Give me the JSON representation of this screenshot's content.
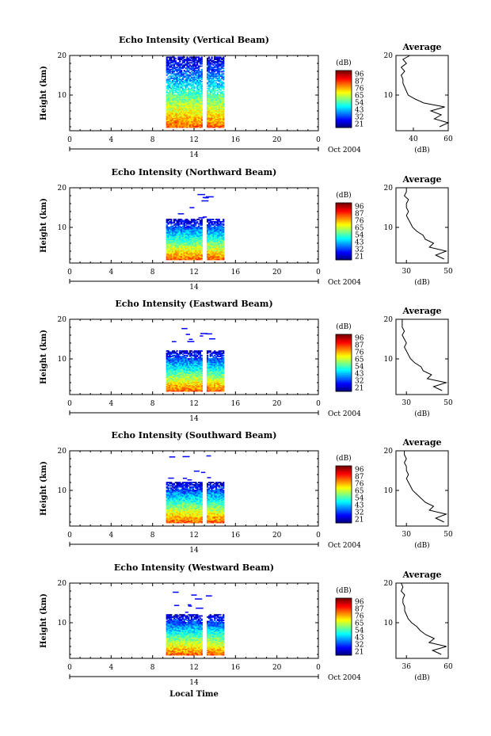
{
  "figure": {
    "xlabel": "Local Time",
    "date_label": "Oct 2004",
    "avg_title": "Average",
    "avg_xlabel": "(dB)",
    "colorbar_label": "(dB)",
    "colorbar_ticks": [
      "96",
      "87",
      "76",
      "65",
      "54",
      "43",
      "32",
      "21"
    ]
  },
  "chart_data": [
    {
      "type": "heatmap",
      "title": "Echo Intensity (Vertical Beam)",
      "ylabel": "Height (km)",
      "xlim": [
        0,
        24
      ],
      "ylim": [
        1,
        20
      ],
      "xticks": [
        "0",
        "4",
        "8",
        "12",
        "16",
        "20",
        "0"
      ],
      "yticks": [
        "10",
        "20"
      ],
      "date_tick": "14",
      "time_start": 9.3,
      "time_end": 14.9,
      "gap": [
        12.8,
        13.1
      ],
      "top_km": 19.5,
      "colorbar": {
        "min": 21,
        "max": 96,
        "ticks": [
          96,
          87,
          76,
          65,
          54,
          43,
          32,
          21
        ]
      },
      "average": {
        "xlim": [
          30,
          60
        ],
        "xticks": [
          "40",
          "60"
        ],
        "height_km": [
          2,
          3,
          4,
          5,
          6,
          7,
          8,
          9,
          10,
          11,
          12,
          13,
          14,
          15,
          16,
          17,
          18,
          19,
          20
        ],
        "db": [
          55,
          60,
          52,
          56,
          50,
          58,
          46,
          41,
          37,
          36,
          35,
          34,
          34,
          33,
          35,
          33,
          36,
          34,
          38
        ]
      }
    },
    {
      "type": "heatmap",
      "title": "Echo Intensity (Northward Beam)",
      "ylabel": "Height (km)",
      "xlim": [
        0,
        24
      ],
      "ylim": [
        1,
        20
      ],
      "xticks": [
        "0",
        "4",
        "8",
        "12",
        "16",
        "20",
        "0"
      ],
      "yticks": [
        "10",
        "20"
      ],
      "date_tick": "14",
      "time_start": 9.3,
      "time_end": 14.9,
      "gap": [
        12.8,
        13.1
      ],
      "top_km": 12,
      "colorbar": {
        "min": 21,
        "max": 96,
        "ticks": [
          96,
          87,
          76,
          65,
          54,
          43,
          32,
          21
        ]
      },
      "average": {
        "xlim": [
          25,
          50
        ],
        "xticks": [
          "30",
          "50"
        ],
        "height_km": [
          2,
          3,
          4,
          5,
          6,
          7,
          8,
          9,
          10,
          11,
          12,
          13,
          14,
          15,
          16,
          17,
          18,
          19,
          20
        ],
        "db": [
          48,
          44,
          49,
          41,
          43,
          39,
          38,
          35,
          33,
          32,
          31,
          30,
          31,
          30,
          30,
          31,
          29,
          30,
          30
        ]
      }
    },
    {
      "type": "heatmap",
      "title": "Echo Intensity (Eastward Beam)",
      "ylabel": "Height (km)",
      "xlim": [
        0,
        24
      ],
      "ylim": [
        1,
        20
      ],
      "xticks": [
        "0",
        "4",
        "8",
        "12",
        "16",
        "20",
        "0"
      ],
      "yticks": [
        "10",
        "20"
      ],
      "date_tick": "14",
      "time_start": 9.3,
      "time_end": 14.9,
      "gap": [
        12.8,
        13.1
      ],
      "top_km": 12,
      "colorbar": {
        "min": 21,
        "max": 96,
        "ticks": [
          96,
          87,
          76,
          65,
          54,
          43,
          32,
          21
        ]
      },
      "average": {
        "xlim": [
          25,
          50
        ],
        "xticks": [
          "30",
          "50"
        ],
        "height_km": [
          2,
          3,
          4,
          5,
          6,
          7,
          8,
          9,
          10,
          11,
          12,
          13,
          14,
          15,
          16,
          17,
          18,
          19,
          20
        ],
        "db": [
          47,
          43,
          49,
          40,
          42,
          38,
          37,
          34,
          32,
          31,
          30,
          29,
          30,
          29,
          28,
          29,
          28,
          28,
          28
        ]
      }
    },
    {
      "type": "heatmap",
      "title": "Echo Intensity (Southward Beam)",
      "ylabel": "Height (km)",
      "xlim": [
        0,
        24
      ],
      "ylim": [
        1,
        20
      ],
      "xticks": [
        "0",
        "4",
        "8",
        "12",
        "16",
        "20",
        "0"
      ],
      "yticks": [
        "10",
        "20"
      ],
      "date_tick": "14",
      "time_start": 9.3,
      "time_end": 14.9,
      "gap": [
        12.8,
        13.1
      ],
      "top_km": 12,
      "colorbar": {
        "min": 21,
        "max": 96,
        "ticks": [
          96,
          87,
          76,
          65,
          54,
          43,
          32,
          21
        ]
      },
      "average": {
        "xlim": [
          25,
          50
        ],
        "xticks": [
          "30",
          "50"
        ],
        "height_km": [
          2,
          3,
          4,
          5,
          6,
          7,
          8,
          9,
          10,
          11,
          12,
          13,
          14,
          15,
          16,
          17,
          18,
          19,
          20
        ],
        "db": [
          48,
          44,
          49,
          41,
          43,
          39,
          37,
          35,
          33,
          32,
          31,
          30,
          31,
          30,
          30,
          29,
          30,
          29,
          29
        ]
      }
    },
    {
      "type": "heatmap",
      "title": "Echo Intensity (Westward Beam)",
      "ylabel": "Height (km)",
      "xlim": [
        0,
        24
      ],
      "ylim": [
        1,
        20
      ],
      "xticks": [
        "0",
        "4",
        "8",
        "12",
        "16",
        "20",
        "0"
      ],
      "yticks": [
        "10",
        "20"
      ],
      "date_tick": "14",
      "time_start": 9.3,
      "time_end": 14.9,
      "gap": [
        12.8,
        13.1
      ],
      "top_km": 12,
      "colorbar": {
        "min": 21,
        "max": 96,
        "ticks": [
          96,
          87,
          76,
          65,
          54,
          43,
          32,
          21
        ]
      },
      "average": {
        "xlim": [
          30,
          60
        ],
        "xticks": [
          "36",
          "60"
        ],
        "height_km": [
          2,
          3,
          4,
          5,
          6,
          7,
          8,
          9,
          10,
          11,
          12,
          13,
          14,
          15,
          16,
          17,
          18,
          19,
          20
        ],
        "db": [
          56,
          51,
          59,
          49,
          52,
          47,
          44,
          42,
          39,
          37,
          36,
          35,
          35,
          34,
          34,
          35,
          33,
          34,
          33
        ]
      }
    }
  ]
}
